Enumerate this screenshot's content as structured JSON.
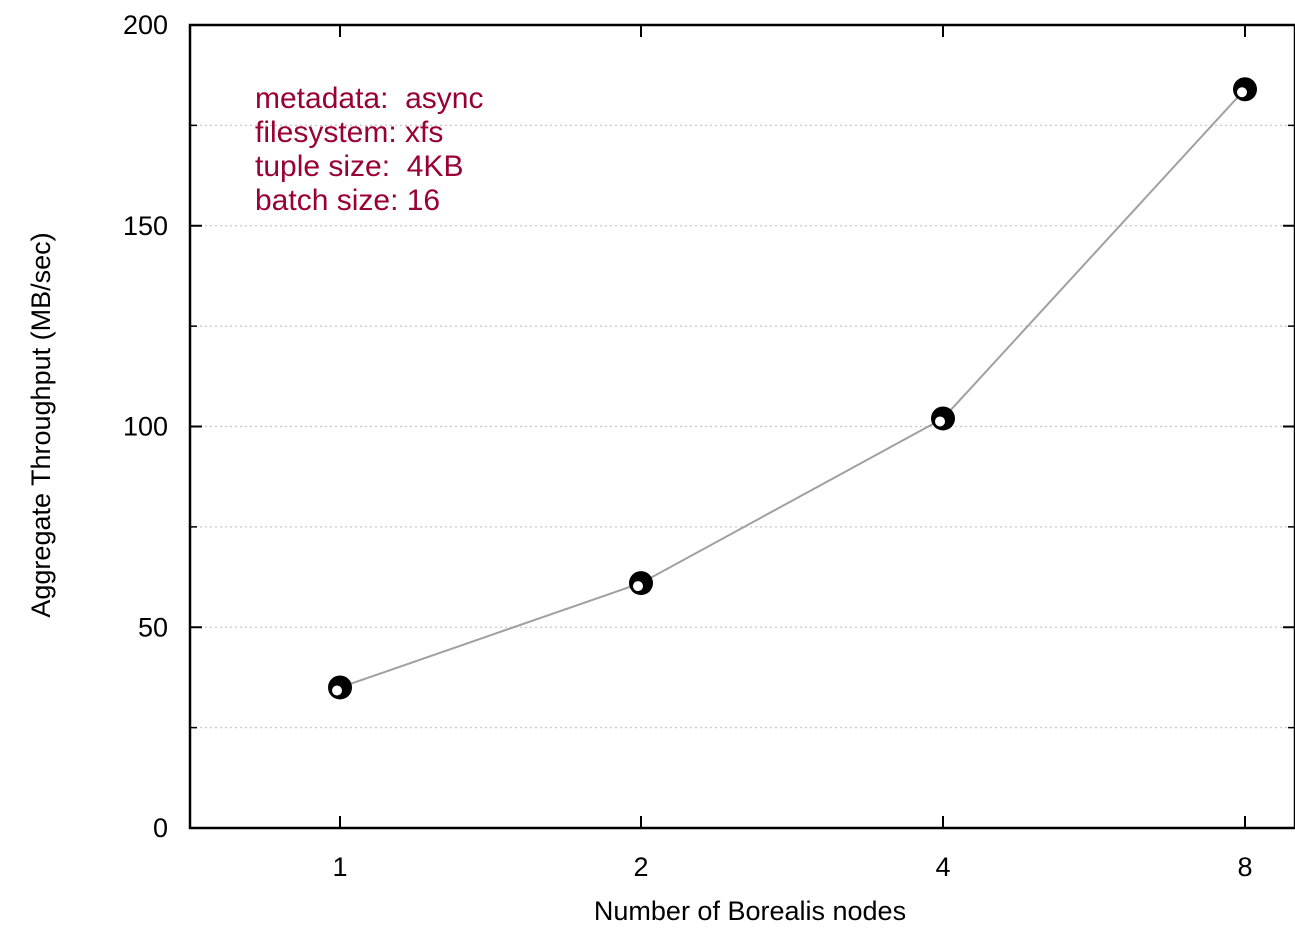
{
  "chart_data": {
    "type": "line",
    "title": "",
    "xlabel": "Number of Borealis nodes",
    "ylabel": "Aggregate Throughput (MB/sec)",
    "categories": [
      "1",
      "2",
      "4",
      "8"
    ],
    "ylim": [
      0,
      200
    ],
    "y_ticks": [
      "0",
      "50",
      "100",
      "150",
      "200"
    ],
    "grid": "horizontal dotted",
    "series": [
      {
        "values": [
          35,
          61,
          102,
          184
        ]
      }
    ],
    "annotations": [
      "metadata:  async",
      "filesystem: xfs",
      "tuple size:  4KB",
      "batch size: 16"
    ]
  },
  "colors": {
    "line": "#a0a0a0",
    "marker": "#000000",
    "annotation_text": "#990033",
    "axis": "#000000",
    "grid": "#c8c8c8"
  }
}
